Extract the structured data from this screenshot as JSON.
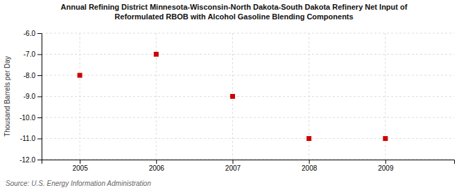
{
  "chart_data": {
    "type": "scatter",
    "title": "Annual Refining District Minnesota-Wisconsin-North Dakota-South Dakota Refinery Net Input of\nReformulated RBOB with Alcohol Gasoline Blending Components",
    "y_label": "Thousand Barrels per Day",
    "source": "Source: U.S. Energy Information Administration",
    "x": [
      2005,
      2006,
      2007,
      2008,
      2009
    ],
    "values": [
      -8.0,
      -7.0,
      -9.0,
      -11.0,
      -11.0
    ],
    "color": "#cc0000",
    "marker": "square",
    "xlim": [
      2004.5,
      2009.9
    ],
    "xticks": [
      2005,
      2006,
      2007,
      2008,
      2009
    ],
    "ylim": [
      -12.0,
      -6.0
    ],
    "yticks": [
      {
        "value": -12.0,
        "label": "-12.0"
      },
      {
        "value": -11.0,
        "label": "-11.0"
      },
      {
        "value": -10.0,
        "label": "-10.0"
      },
      {
        "value": -9.0,
        "label": "-9.0"
      },
      {
        "value": -8.0,
        "label": "-8.0"
      },
      {
        "value": -7.0,
        "label": "-7.0"
      },
      {
        "value": -6.0,
        "label": "-6.0"
      }
    ],
    "grid": true
  }
}
